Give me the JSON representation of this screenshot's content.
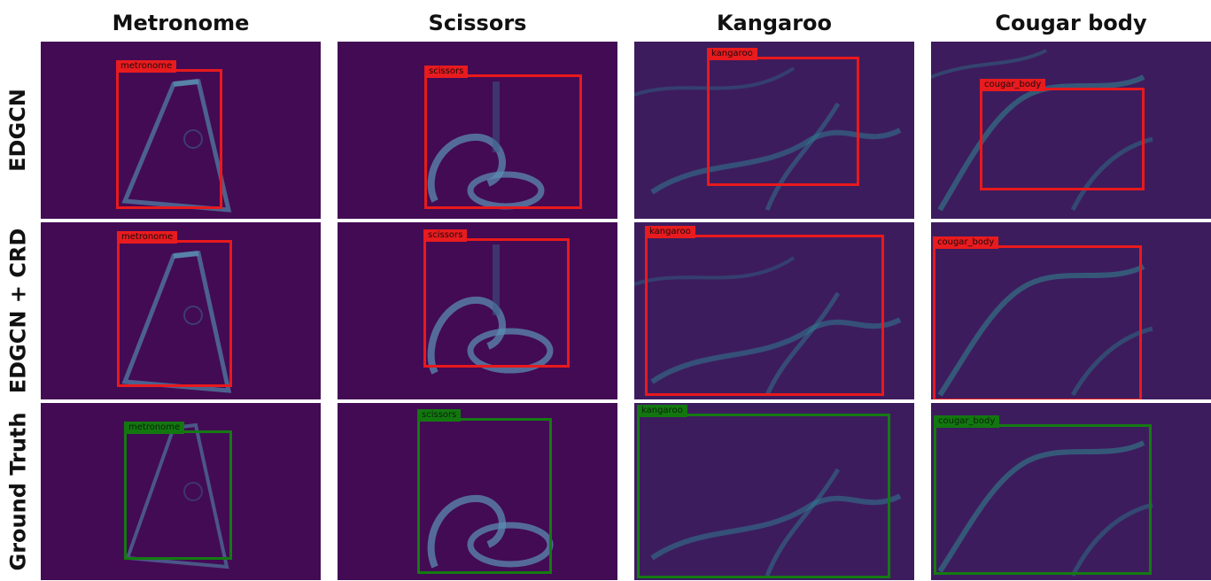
{
  "columns": [
    "Metronome",
    "Scissors",
    "Kangaroo",
    "Cougar body"
  ],
  "rows": [
    "EDGCN",
    "EDGCN + CRD",
    "Ground Truth"
  ],
  "label_colors": {
    "prediction": "#e8191c",
    "ground_truth": "#157a12",
    "background": "#430b54"
  },
  "boxes": {
    "edgcn": [
      "metronome",
      "scissors",
      "kangaroo",
      "cougar_body"
    ],
    "edgcn_crd": [
      "metronome",
      "scissors",
      "kangaroo",
      "cougar_body"
    ],
    "ground_truth": [
      "metronome",
      "scissors",
      "kangaroo",
      "cougar_body"
    ]
  }
}
